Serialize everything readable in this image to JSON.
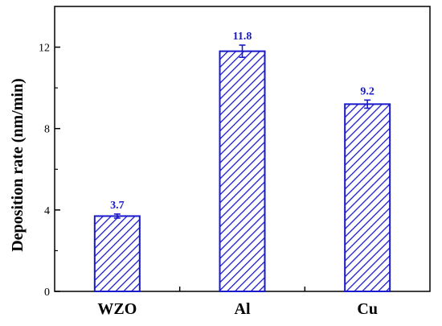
{
  "chart_data": {
    "type": "bar",
    "categories": [
      "WZO",
      "Al",
      "Cu"
    ],
    "values": [
      3.7,
      11.8,
      9.2
    ],
    "errors": [
      0.1,
      0.3,
      0.2
    ],
    "data_labels": [
      "3.7",
      "11.8",
      "9.2"
    ],
    "ylabel": "Deposition rate (nm/min)",
    "xlabel": "",
    "title": "",
    "ylim": [
      0,
      14
    ],
    "yticks": [
      0,
      4,
      8,
      12
    ],
    "ytick_labels": [
      "0",
      "4",
      "8",
      "12"
    ],
    "bar_color": "#1a1acc",
    "bar_fill": "hatched-diagonal",
    "grid": false,
    "legend": "none"
  }
}
